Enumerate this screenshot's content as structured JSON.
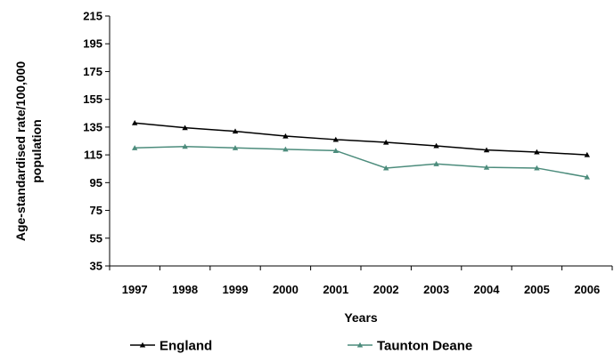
{
  "chart_data": {
    "type": "line",
    "title": "",
    "xlabel": "Years",
    "ylabel_lines": [
      "Age-standardised rate/100,000",
      "population"
    ],
    "categories": [
      "1997",
      "1998",
      "1999",
      "2000",
      "2001",
      "2002",
      "2003",
      "2004",
      "2005",
      "2006"
    ],
    "ylim": [
      35,
      215
    ],
    "yticks": [
      35,
      55,
      75,
      95,
      115,
      135,
      155,
      175,
      195,
      215
    ],
    "grid": false,
    "legend_position": "bottom",
    "series": [
      {
        "name": "England",
        "color": "#000000",
        "marker": "triangle",
        "values": [
          138,
          134.5,
          132,
          128.5,
          126,
          124,
          121.5,
          118.5,
          117,
          115
        ]
      },
      {
        "name": "Taunton Deane",
        "color": "#4c8c7c",
        "marker": "triangle",
        "values": [
          120,
          121,
          120,
          119,
          118,
          105.5,
          108.5,
          106,
          105.5,
          99
        ]
      }
    ]
  }
}
